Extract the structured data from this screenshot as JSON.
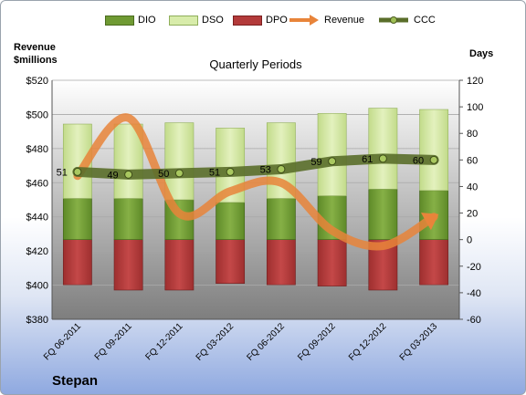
{
  "company": "Stepan",
  "plot_title": "Quarterly Periods",
  "left_axis_title_line1": "Revenue",
  "left_axis_title_line2": "$millions",
  "right_axis_title": "Days",
  "colors": {
    "dio": "#6f9a33",
    "dso": "#c7e08f",
    "dpo": "#b33a3a",
    "revenue": "#e8843a",
    "ccc": "#5a6e2a"
  },
  "legend": [
    "DIO",
    "DSO",
    "DPO",
    "Revenue",
    "CCC"
  ],
  "chart_data": {
    "type": "bar",
    "categories": [
      "FQ 06-2011",
      "FQ 09-2011",
      "FQ 12-2011",
      "FQ 03-2012",
      "FQ 06-2012",
      "FQ 09-2012",
      "FQ 12-2012",
      "FQ 03-2013"
    ],
    "left_axis": {
      "ylim": [
        380,
        520
      ],
      "ticks": [
        "$380",
        "$400",
        "$420",
        "$440",
        "$460",
        "$480",
        "$500",
        "$520"
      ]
    },
    "right_axis": {
      "ylim": [
        -60,
        120
      ],
      "ticks": [
        "-60",
        "-40",
        "-20",
        "0",
        "20",
        "40",
        "60",
        "80",
        "100",
        "120"
      ]
    },
    "series": [
      {
        "name": "DIO",
        "axis": "right",
        "type": "stacked-bar",
        "values": [
          31,
          31,
          30,
          28,
          31,
          33,
          38,
          37
        ]
      },
      {
        "name": "DSO",
        "axis": "right",
        "type": "stacked-bar",
        "values": [
          56,
          56,
          58,
          56,
          57,
          62,
          61,
          61
        ]
      },
      {
        "name": "DPO",
        "axis": "right",
        "type": "stacked-bar-negative",
        "values": [
          -34,
          -38,
          -38,
          -33,
          -34,
          -35,
          -38,
          -34
        ]
      },
      {
        "name": "Revenue",
        "axis": "left",
        "type": "line",
        "values": [
          464,
          498,
          442,
          455,
          460,
          432,
          423,
          440
        ]
      },
      {
        "name": "CCC",
        "axis": "right",
        "type": "line",
        "values": [
          51,
          49,
          50,
          51,
          53,
          59,
          61,
          60
        ],
        "labels": [
          "51",
          "49",
          "50",
          "51",
          "53",
          "59",
          "61",
          "60"
        ]
      }
    ],
    "grid": true
  }
}
